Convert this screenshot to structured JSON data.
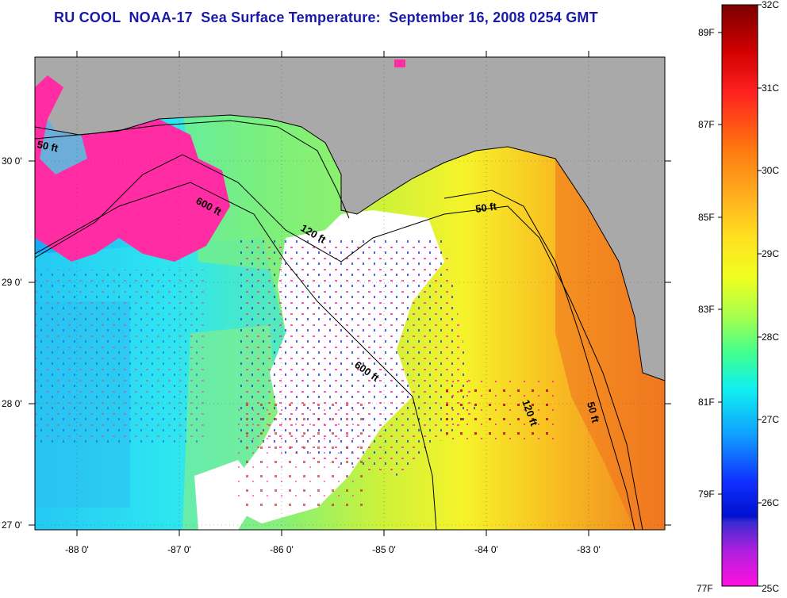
{
  "title": "RU COOL  NOAA-17  Sea Surface Temperature:  September 16, 2008 0254 GMT",
  "map": {
    "lon_ticks": [
      "-88 0'",
      "-87 0'",
      "-86 0'",
      "-85 0'",
      "-84 0'",
      "-83 0'"
    ],
    "lat_ticks": [
      "27 0'",
      "28 0'",
      "29 0'",
      "30 0'"
    ],
    "contour_labels": [
      "50 ft",
      "600 ft",
      "120 ft",
      "50 ft",
      "600 ft",
      "120 ft",
      "50 ft"
    ],
    "colors": {
      "land": "#a9a9a9",
      "cloud": "#ffffff",
      "cold_pink": "#ff2ca3",
      "cyan": "#2ee6f0",
      "green": "#7ef07a",
      "yellow": "#f6f32a",
      "orange": "#f59a22"
    }
  },
  "colorbar": {
    "fahrenheit_labels": [
      "89F",
      "87F",
      "85F",
      "83F",
      "81F",
      "79F",
      "77F"
    ],
    "celsius_labels": [
      "32C",
      "31C",
      "30C",
      "29C",
      "28C",
      "27C",
      "26C",
      "25C"
    ]
  }
}
